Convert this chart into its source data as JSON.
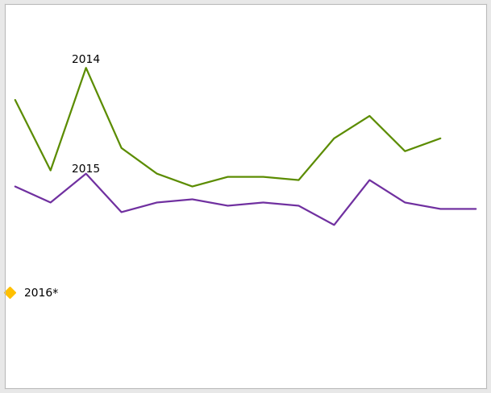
{
  "line_2014": [
    90,
    68,
    100,
    75,
    67,
    63,
    66,
    66,
    65,
    78,
    85,
    74,
    78
  ],
  "line_2015": [
    63,
    58,
    67,
    55,
    58,
    59,
    57,
    58,
    57,
    51,
    65,
    58,
    56,
    56
  ],
  "x_2014": [
    0,
    1,
    2,
    3,
    4,
    5,
    6,
    7,
    8,
    9,
    10,
    11,
    12
  ],
  "x_2015": [
    0,
    1,
    2,
    3,
    4,
    5,
    6,
    7,
    8,
    9,
    10,
    11,
    12,
    13
  ],
  "color_2014": "#5b8c00",
  "color_2015": "#7030a0",
  "color_2016": "#ffc000",
  "label_2014": "2014",
  "label_2015": "2015",
  "label_2016": "2016*",
  "background_color": "#e8e8e8",
  "plot_background": "#ffffff",
  "ylim": [
    0,
    120
  ],
  "xlim": [
    -0.3,
    13.3
  ],
  "grid_color": "#c8c8c8",
  "linewidth": 1.6
}
